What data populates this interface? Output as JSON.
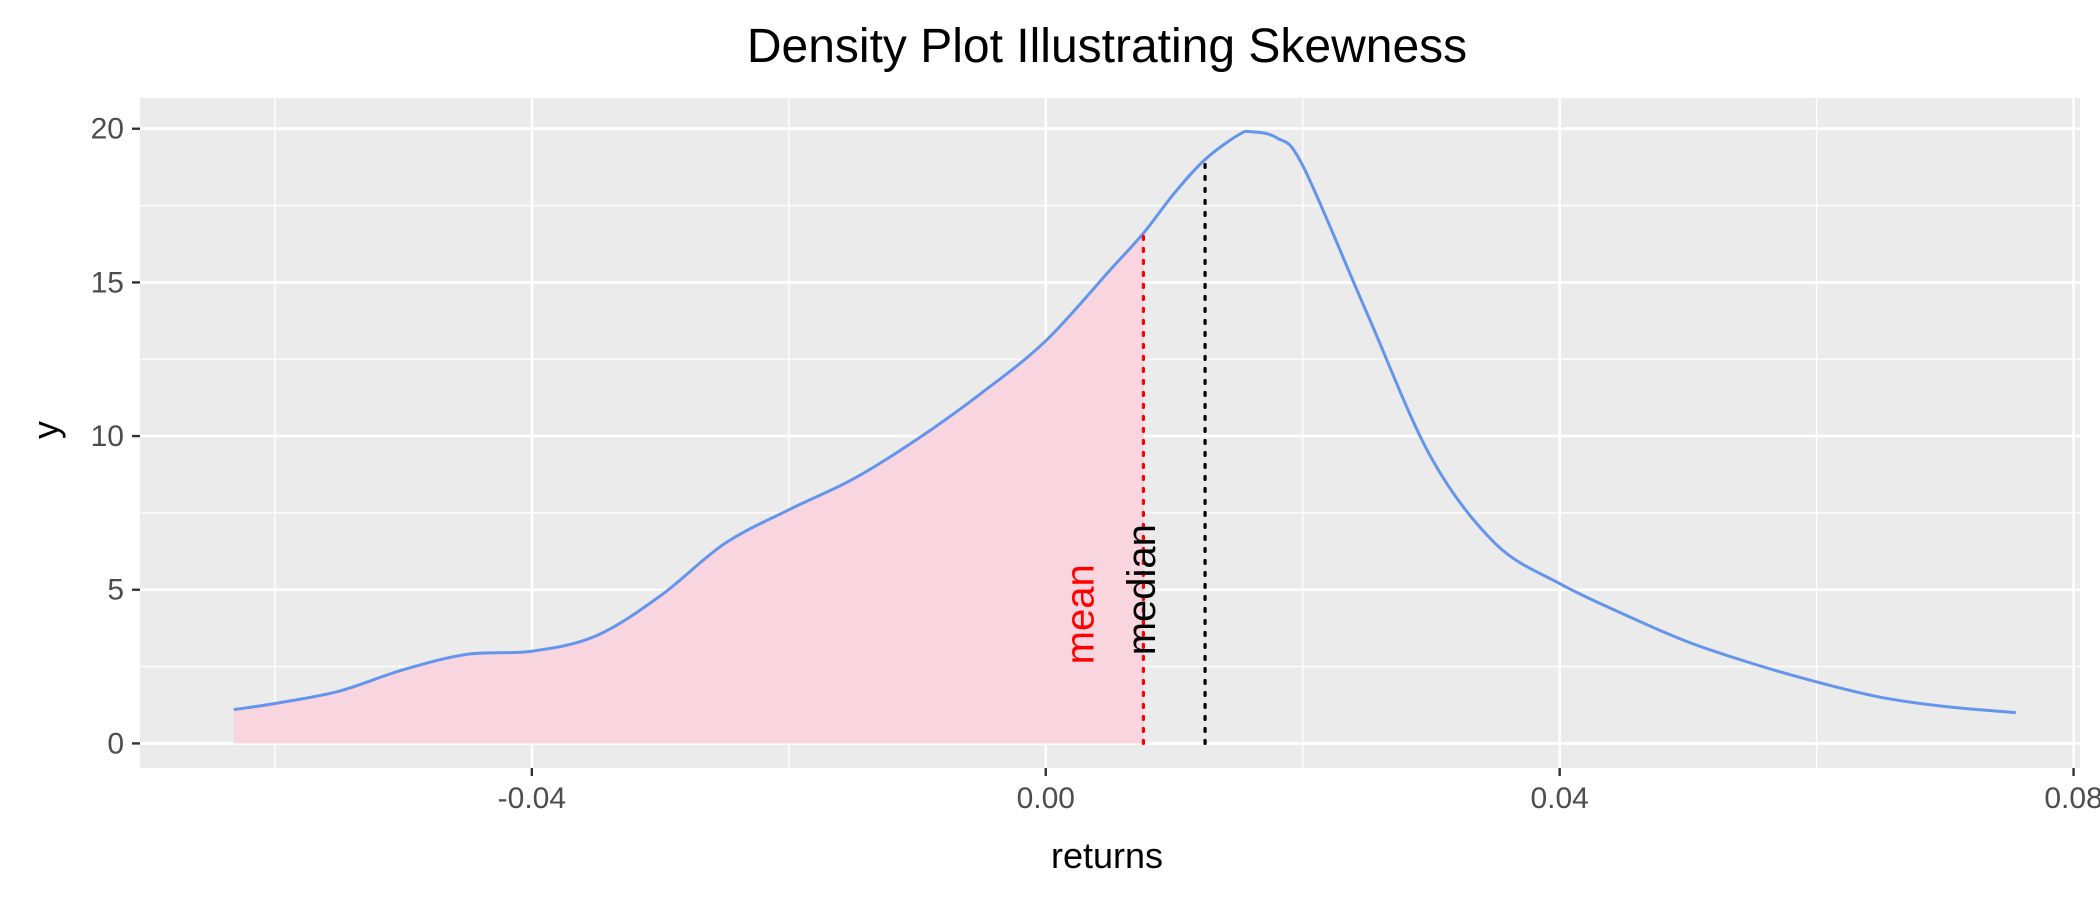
{
  "chart_data": {
    "type": "area",
    "title": "Density Plot Illustrating Skewness",
    "xlabel": "returns",
    "ylabel": "y",
    "xlim": [
      -0.0705,
      0.0805
    ],
    "ylim": [
      -0.8,
      21.0
    ],
    "x_ticks": [
      -0.04,
      0.0,
      0.04,
      0.08
    ],
    "x_tick_labels": [
      "-0.04",
      "0.00",
      "0.04",
      "0.08"
    ],
    "y_ticks": [
      0,
      5,
      10,
      15,
      20
    ],
    "y_tick_labels": [
      "0",
      "5",
      "10",
      "15",
      "20"
    ],
    "grid": true,
    "panel_background": "#EBEBEB",
    "series": [
      {
        "x": [
          -0.0632,
          -0.06,
          -0.055,
          -0.05,
          -0.045,
          -0.04,
          -0.035,
          -0.03,
          -0.025,
          -0.02,
          -0.015,
          -0.01,
          -0.005,
          0.0,
          0.005,
          0.0076,
          0.01,
          0.0124,
          0.015,
          0.016,
          0.018,
          0.02,
          0.025,
          0.03,
          0.035,
          0.04,
          0.045,
          0.05,
          0.055,
          0.06,
          0.065,
          0.07,
          0.0755
        ],
        "y": [
          1.1,
          1.3,
          1.7,
          2.4,
          2.9,
          3.0,
          3.5,
          4.8,
          6.5,
          7.6,
          8.6,
          9.9,
          11.4,
          13.1,
          15.4,
          16.6,
          17.9,
          19.0,
          19.8,
          19.9,
          19.7,
          18.8,
          14.0,
          9.3,
          6.5,
          5.2,
          4.2,
          3.3,
          2.6,
          2.0,
          1.5,
          1.2,
          1.0
        ],
        "color": "#6495ED"
      }
    ],
    "shaded_region": {
      "x_max": 0.0076,
      "color": "#F8D5DF"
    },
    "annotations": [
      {
        "label": "mean",
        "x": 0.0076,
        "y_top": 16.6,
        "color": "#FF0000",
        "linestyle": "dotted",
        "text_y": 4.2
      },
      {
        "label": "median",
        "x": 0.0124,
        "y_top": 19.0,
        "color": "#000000",
        "linestyle": "dotted",
        "text_y": 5.0
      }
    ]
  }
}
